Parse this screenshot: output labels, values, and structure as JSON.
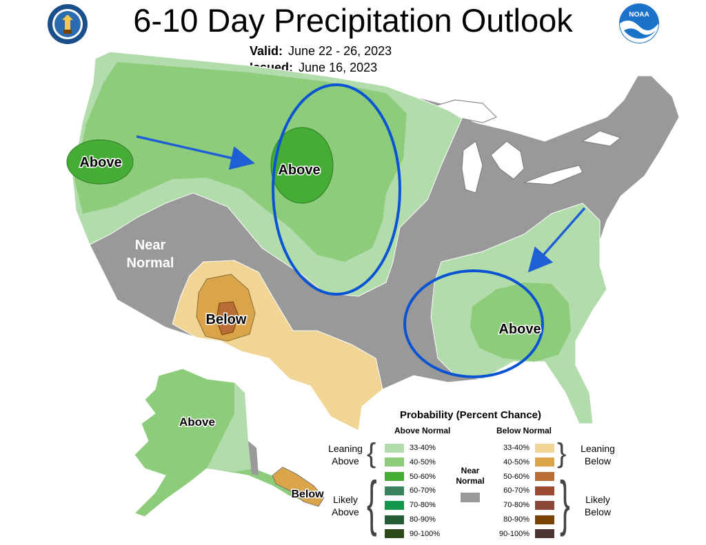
{
  "header": {
    "title": "6-10 Day Precipitation Outlook",
    "valid_label": "Valid:",
    "valid_value": "June 22 - 26, 2023",
    "issued_label": "Issued:",
    "issued_value": "June 16, 2023"
  },
  "logos": {
    "left": "department-of-commerce-seal-icon",
    "right": "noaa-logo-icon"
  },
  "map_labels": {
    "northwest_above": "Above",
    "plains_above": "Above",
    "near_normal": [
      "Near",
      "Normal"
    ],
    "southwest_below": "Below",
    "southeast_above": "Above",
    "alaska_above": "Above",
    "alaska_below": "Below"
  },
  "legend": {
    "title": "Probability (Percent Chance)",
    "above_header": "Above Normal",
    "below_header": "Below Normal",
    "near_header": [
      "Near",
      "Normal"
    ],
    "leaning_above": [
      "Leaning",
      "Above"
    ],
    "likely_above": [
      "Likely",
      "Above"
    ],
    "leaning_below": [
      "Leaning",
      "Below"
    ],
    "likely_below": [
      "Likely",
      "Below"
    ],
    "above_items": [
      {
        "label": "33-40%",
        "color": "#b3dcac"
      },
      {
        "label": "40-50%",
        "color": "#8dcc7b"
      },
      {
        "label": "50-60%",
        "color": "#45ad35"
      },
      {
        "label": "60-70%",
        "color": "#39845d"
      },
      {
        "label": "70-80%",
        "color": "#14964b"
      },
      {
        "label": "80-90%",
        "color": "#245b37"
      },
      {
        "label": "90-100%",
        "color": "#2c4a1a"
      }
    ],
    "below_items": [
      {
        "label": "33-40%",
        "color": "#f1d595"
      },
      {
        "label": "40-50%",
        "color": "#d9a44a"
      },
      {
        "label": "50-60%",
        "color": "#b86d35"
      },
      {
        "label": "60-70%",
        "color": "#9c4a32"
      },
      {
        "label": "70-80%",
        "color": "#8b4a37"
      },
      {
        "label": "80-90%",
        "color": "#7a4200"
      },
      {
        "label": "90-100%",
        "color": "#4e3333"
      }
    ],
    "near_color": "#999999"
  },
  "colors": {
    "arrow": "#1f5fd6",
    "ellipse": "#0a53d2",
    "near_normal": "#999999"
  }
}
